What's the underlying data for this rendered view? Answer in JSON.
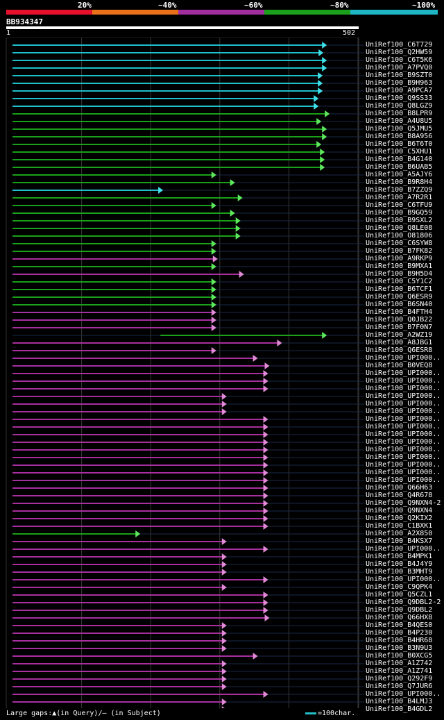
{
  "legend": {
    "labels": [
      "20%",
      "~40%",
      "~60%",
      "~80%",
      "~100%"
    ],
    "colors": [
      "#e8112d",
      "#e8711a",
      "#a12e9e",
      "#1aa01a",
      "#1fb6c4"
    ]
  },
  "query": {
    "name": "BB934347",
    "start": "1",
    "end": "502"
  },
  "footer": {
    "gaps": "Large gaps:▲(in Query)/– (in Subject)",
    "scale": "=100char."
  },
  "hits": [
    {
      "label": "UniRef100_C6T729",
      "color": "cyan",
      "start": 1,
      "end": 455
    },
    {
      "label": "UniRef100_Q2HW59",
      "color": "cyan",
      "start": 1,
      "end": 450
    },
    {
      "label": "UniRef100_C6T5K6",
      "color": "cyan",
      "start": 1,
      "end": 455
    },
    {
      "label": "UniRef100_A7PVQ0",
      "color": "cyan",
      "start": 1,
      "end": 455
    },
    {
      "label": "UniRef100_B9SZT0",
      "color": "cyan",
      "start": 1,
      "end": 449
    },
    {
      "label": "UniRef100_B9H963",
      "color": "cyan",
      "start": 1,
      "end": 449
    },
    {
      "label": "UniRef100_A9PCA7",
      "color": "cyan",
      "start": 1,
      "end": 449
    },
    {
      "label": "UniRef100_Q9SS33",
      "color": "cyan",
      "start": 1,
      "end": 443
    },
    {
      "label": "UniRef100_Q8LGZ9",
      "color": "cyan",
      "start": 1,
      "end": 443
    },
    {
      "label": "UniRef100_B8LPR9",
      "color": "green",
      "start": 1,
      "end": 459
    },
    {
      "label": "UniRef100_A4U8U5",
      "color": "green",
      "start": 1,
      "end": 447
    },
    {
      "label": "UniRef100_Q5JMU5",
      "color": "green",
      "start": 1,
      "end": 455
    },
    {
      "label": "UniRef100_B8A956",
      "color": "green",
      "start": 1,
      "end": 455
    },
    {
      "label": "UniRef100_B6T6T0",
      "color": "green",
      "start": 1,
      "end": 447
    },
    {
      "label": "UniRef100_C5XHU1",
      "color": "green",
      "start": 1,
      "end": 452
    },
    {
      "label": "UniRef100_B4G140",
      "color": "green",
      "start": 1,
      "end": 452
    },
    {
      "label": "UniRef100_B6UAB5",
      "color": "green",
      "start": 1,
      "end": 452
    },
    {
      "label": "UniRef100_A5AJY6",
      "color": "green",
      "start": 1,
      "end": 295
    },
    {
      "label": "UniRef100_B9R8H4",
      "color": "green",
      "start": 1,
      "end": 322
    },
    {
      "label": "UniRef100_B7ZZQ9",
      "color": "cyan",
      "start": 1,
      "end": 218
    },
    {
      "label": "UniRef100_A7R2R1",
      "color": "green",
      "start": 1,
      "end": 333
    },
    {
      "label": "UniRef100_C6TFU9",
      "color": "green",
      "start": 1,
      "end": 295
    },
    {
      "label": "UniRef100_B9GQ59",
      "color": "green",
      "start": 1,
      "end": 322
    },
    {
      "label": "UniRef100_B9SXL2",
      "color": "green",
      "start": 1,
      "end": 330
    },
    {
      "label": "UniRef100_Q8LE08",
      "color": "green",
      "start": 1,
      "end": 330
    },
    {
      "label": "UniRef100_O81806",
      "color": "green",
      "start": 1,
      "end": 330
    },
    {
      "label": "UniRef100_C6SYW8",
      "color": "green",
      "start": 1,
      "end": 295
    },
    {
      "label": "UniRef100_B7FK82",
      "color": "green",
      "start": 1,
      "end": 295
    },
    {
      "label": "UniRef100_A9RKP9",
      "color": "magenta",
      "start": 1,
      "end": 297
    },
    {
      "label": "UniRef100_B9MXA1",
      "color": "green",
      "start": 1,
      "end": 295
    },
    {
      "label": "UniRef100_B9H5D4",
      "color": "magenta",
      "start": 1,
      "end": 335
    },
    {
      "label": "UniRef100_C5Y1C2",
      "color": "green",
      "start": 1,
      "end": 295
    },
    {
      "label": "UniRef100_B6TCF1",
      "color": "green",
      "start": 1,
      "end": 295
    },
    {
      "label": "UniRef100_Q6ESR9",
      "color": "green",
      "start": 1,
      "end": 295
    },
    {
      "label": "UniRef100_B6SN40",
      "color": "green",
      "start": 1,
      "end": 295
    },
    {
      "label": "UniRef100_B4FTH4",
      "color": "magenta",
      "start": 1,
      "end": 295
    },
    {
      "label": "UniRef100_Q0JB22",
      "color": "magenta",
      "start": 1,
      "end": 295
    },
    {
      "label": "UniRef100_B7F0N7",
      "color": "magenta",
      "start": 1,
      "end": 295
    },
    {
      "label": "UniRef100_A2WZ19",
      "color": "green",
      "start": 215,
      "end": 455
    },
    {
      "label": "UniRef100_A8JBG1",
      "color": "magenta",
      "start": 1,
      "end": 390
    },
    {
      "label": "UniRef100_Q6ESR8",
      "color": "magenta",
      "start": 1,
      "end": 295
    },
    {
      "label": "UniRef100_UPI000..",
      "color": "magenta",
      "start": 1,
      "end": 355
    },
    {
      "label": "UniRef100_B0VEQ8",
      "color": "magenta",
      "start": 1,
      "end": 372
    },
    {
      "label": "UniRef100_UPI000..",
      "color": "magenta",
      "start": 1,
      "end": 370
    },
    {
      "label": "UniRef100_UPI000..",
      "color": "magenta",
      "start": 1,
      "end": 370
    },
    {
      "label": "UniRef100_UPI000..",
      "color": "magenta",
      "start": 1,
      "end": 370
    },
    {
      "label": "UniRef100_UPI000..",
      "color": "magenta",
      "start": 1,
      "end": 310
    },
    {
      "label": "UniRef100_UPI000..",
      "color": "magenta",
      "start": 1,
      "end": 310
    },
    {
      "label": "UniRef100_UPI000..",
      "color": "magenta",
      "start": 1,
      "end": 310
    },
    {
      "label": "UniRef100_UPI000..",
      "color": "magenta",
      "start": 1,
      "end": 370
    },
    {
      "label": "UniRef100_UPI000..",
      "color": "magenta",
      "start": 1,
      "end": 370
    },
    {
      "label": "UniRef100_UPI000..",
      "color": "magenta",
      "start": 1,
      "end": 370
    },
    {
      "label": "UniRef100_UPI000..",
      "color": "magenta",
      "start": 1,
      "end": 370
    },
    {
      "label": "UniRef100_UPI000..",
      "color": "magenta",
      "start": 1,
      "end": 370
    },
    {
      "label": "UniRef100_UPI000..",
      "color": "magenta",
      "start": 1,
      "end": 370
    },
    {
      "label": "UniRef100_UPI000..",
      "color": "magenta",
      "start": 1,
      "end": 370
    },
    {
      "label": "UniRef100_UPI000..",
      "color": "magenta",
      "start": 1,
      "end": 370
    },
    {
      "label": "UniRef100_UPI000..",
      "color": "magenta",
      "start": 1,
      "end": 370
    },
    {
      "label": "UniRef100_Q66H63",
      "color": "magenta",
      "start": 1,
      "end": 370
    },
    {
      "label": "UniRef100_Q4R678",
      "color": "magenta",
      "start": 1,
      "end": 370
    },
    {
      "label": "UniRef100_Q9NXN4-2",
      "color": "magenta",
      "start": 1,
      "end": 370
    },
    {
      "label": "UniRef100_Q9NXN4",
      "color": "magenta",
      "start": 1,
      "end": 370
    },
    {
      "label": "UniRef100_Q2KIX2",
      "color": "magenta",
      "start": 1,
      "end": 370
    },
    {
      "label": "UniRef100_C1BXK1",
      "color": "magenta",
      "start": 1,
      "end": 370
    },
    {
      "label": "UniRef100_A2X850",
      "color": "green",
      "start": 1,
      "end": 185
    },
    {
      "label": "UniRef100_B4KSX7",
      "color": "magenta",
      "start": 1,
      "end": 310
    },
    {
      "label": "UniRef100_UPI000..",
      "color": "magenta",
      "start": 1,
      "end": 370
    },
    {
      "label": "UniRef100_B4MPK1",
      "color": "magenta",
      "start": 1,
      "end": 310
    },
    {
      "label": "UniRef100_B4J4Y9",
      "color": "magenta",
      "start": 1,
      "end": 310
    },
    {
      "label": "UniRef100_B3MHT9",
      "color": "magenta",
      "start": 1,
      "end": 310
    },
    {
      "label": "UniRef100_UPI000..",
      "color": "magenta",
      "start": 1,
      "end": 370
    },
    {
      "label": "UniRef100_C9QPK4",
      "color": "magenta",
      "start": 1,
      "end": 310
    },
    {
      "label": "UniRef100_Q5CZL1",
      "color": "magenta",
      "start": 1,
      "end": 370
    },
    {
      "label": "UniRef100_Q9DBL2-2",
      "color": "magenta",
      "start": 1,
      "end": 370
    },
    {
      "label": "UniRef100_Q9DBL2",
      "color": "magenta",
      "start": 1,
      "end": 370
    },
    {
      "label": "UniRef100_Q66HX8",
      "color": "magenta",
      "start": 1,
      "end": 372
    },
    {
      "label": "UniRef100_B4QES0",
      "color": "magenta",
      "start": 1,
      "end": 310
    },
    {
      "label": "UniRef100_B4P230",
      "color": "magenta",
      "start": 1,
      "end": 310
    },
    {
      "label": "UniRef100_B4HR68",
      "color": "magenta",
      "start": 1,
      "end": 310
    },
    {
      "label": "UniRef100_B3N9U3",
      "color": "magenta",
      "start": 1,
      "end": 310
    },
    {
      "label": "UniRef100_B0XCG5",
      "color": "magenta",
      "start": 1,
      "end": 355
    },
    {
      "label": "UniRef100_A1Z742",
      "color": "magenta",
      "start": 1,
      "end": 310
    },
    {
      "label": "UniRef100_A1Z741",
      "color": "magenta",
      "start": 1,
      "end": 310
    },
    {
      "label": "UniRef100_Q292F9",
      "color": "magenta",
      "start": 1,
      "end": 310
    },
    {
      "label": "UniRef100_Q7JUR6",
      "color": "magenta",
      "start": 1,
      "end": 310
    },
    {
      "label": "UniRef100_UPI000..",
      "color": "magenta",
      "start": 1,
      "end": 370
    },
    {
      "label": "UniRef100_B4LMJ3",
      "color": "magenta",
      "start": 1,
      "end": 310
    },
    {
      "label": "UniRef100_B4GDL2",
      "color": "magenta",
      "start": 1,
      "end": 310
    }
  ]
}
